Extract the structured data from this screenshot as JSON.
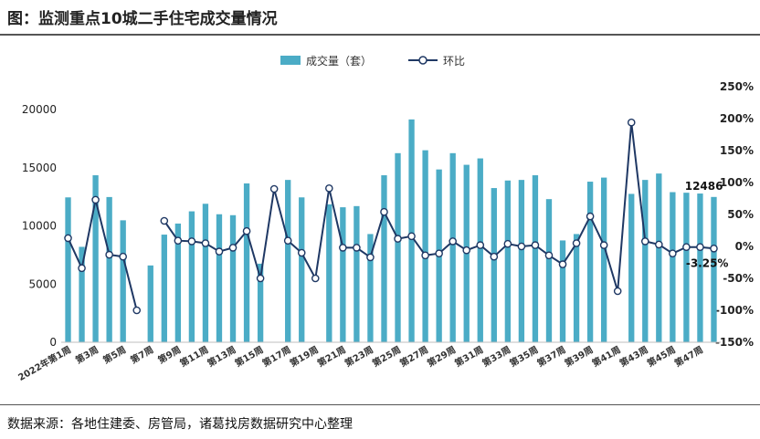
{
  "title": "图：监测重点10城二手住宅成交量情况",
  "source": "数据来源：各地住建委、房管局，诸葛找房数据研究中心整理",
  "colors": {
    "bar": "#4bacc6",
    "line": "#1f3864",
    "marker_fill": "#ffffff"
  },
  "chart_data": {
    "type": "bar",
    "legend": {
      "position": "top-center",
      "bar_label": "成交量（套）",
      "line_label": "环比"
    },
    "categories": [
      "2022年第1周",
      "第2周",
      "第3周",
      "第4周",
      "第5周",
      "第6周",
      "第7周",
      "第8周",
      "第9周",
      "第10周",
      "第11周",
      "第12周",
      "第13周",
      "第14周",
      "第15周",
      "第16周",
      "第17周",
      "第18周",
      "第19周",
      "第20周",
      "第21周",
      "第22周",
      "第23周",
      "第24周",
      "第25周",
      "第26周",
      "第27周",
      "第28周",
      "第29周",
      "第30周",
      "第31周",
      "第32周",
      "第33周",
      "第34周",
      "第35周",
      "第36周",
      "第37周",
      "第38周",
      "第39周",
      "第40周",
      "第41周",
      "第42周",
      "第43周",
      "第44周",
      "第45周",
      "第46周",
      "第47周",
      "第48周"
    ],
    "x_tick_labels": [
      "2022年第1周",
      "",
      "第3周",
      "",
      "第5周",
      "",
      "第7周",
      "",
      "第9周",
      "",
      "第11周",
      "",
      "第13周",
      "",
      "第15周",
      "",
      "第17周",
      "",
      "第19周",
      "",
      "第21周",
      "",
      "第23周",
      "",
      "第25周",
      "",
      "第27周",
      "",
      "第29周",
      "",
      "第31周",
      "",
      "第33周",
      "",
      "第35周",
      "",
      "第37周",
      "",
      "第39周",
      "",
      "第41周",
      "",
      "第43周",
      "",
      "第45周",
      "",
      "第47周",
      ""
    ],
    "series": [
      {
        "name": "成交量（套）",
        "type": "bar",
        "axis": "left",
        "values": [
          12450,
          8200,
          14350,
          12480,
          10480,
          null,
          6600,
          9250,
          10200,
          11250,
          11900,
          11000,
          10920,
          13650,
          6750,
          null,
          13950,
          12450,
          null,
          11850,
          11600,
          11700,
          9300,
          14350,
          16250,
          19150,
          16500,
          14850,
          16250,
          15250,
          15800,
          13250,
          13900,
          13950,
          14350,
          12300,
          8750,
          9300,
          13800,
          14150,
          null,
          12750,
          13950,
          14500,
          12900,
          12850,
          12780,
          12486
        ]
      },
      {
        "name": "环比",
        "type": "line",
        "axis": "right",
        "values": [
          13,
          -34,
          73,
          -13,
          -16,
          -100,
          null,
          40,
          9,
          8,
          5,
          -8,
          -2,
          24,
          -50,
          90,
          9,
          -10,
          -50,
          91,
          -2,
          -2,
          -17,
          54,
          12,
          16,
          -14,
          -11,
          8,
          -6,
          2,
          -16,
          4,
          0,
          2,
          -14,
          -28,
          5,
          47,
          2,
          -70,
          194,
          8,
          3,
          -11,
          -1,
          -1,
          -3.25
        ]
      }
    ],
    "y_left": {
      "min": 0,
      "max": 20000,
      "ticks": [
        0,
        5000,
        10000,
        15000,
        20000
      ]
    },
    "y_right": {
      "min": -150,
      "max": 250,
      "ticks": [
        "-150%",
        "-100%",
        "-50%",
        "0%",
        "50%",
        "100%",
        "150%",
        "200%",
        "250%"
      ]
    },
    "annotations": [
      {
        "text": "12486",
        "category": "第48周",
        "series": "成交量（套）"
      },
      {
        "text": "-3.25%",
        "category": "第48周",
        "series": "环比"
      }
    ],
    "grid": false
  }
}
